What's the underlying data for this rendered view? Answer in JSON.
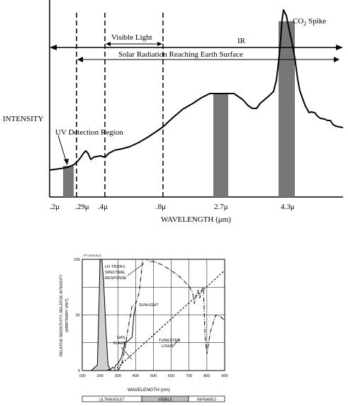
{
  "chart_data": [
    {
      "type": "line",
      "ylabel": "INTENSITY",
      "xlabel": "WAVELENGTH (μm)",
      "x_tick_labels": [
        ".2μ",
        ".29μ",
        ".4μ",
        ".8μ",
        "2.7μ",
        "4.3μ"
      ],
      "band_labels": {
        "visible": "Visible Light",
        "ir": "IR",
        "solar": "Solar Radiation Reaching Earth Surface"
      },
      "annotations": {
        "uv_region": "UV Detection Region",
        "co2_prefix": "CO",
        "co2_sub": "2",
        "co2_suffix": " Spike"
      },
      "shaded_bars_at": [
        ".2μ",
        "2.7μ",
        "4.3μ"
      ],
      "bar_color": "#777777"
    },
    {
      "type": "line",
      "corner_label": "TPT 50000E1A",
      "xlabel": "WAVELENGTH (nm)",
      "ylabel_line1": "RELATIVE SENSITIVITY, RELATIVE INTENSITY",
      "ylabel_line2": "(ARBITRARY UNIT)",
      "x_ticks": [
        "100",
        "200",
        "300",
        "400",
        "500",
        "600",
        "700",
        "800",
        "900"
      ],
      "y_ticks": [
        "0",
        "50",
        "100"
      ],
      "xlim": [
        100,
        900
      ],
      "ylim": [
        0,
        100
      ],
      "annotations": {
        "uvtron_1": "UV TRON's",
        "uvtron_2": "SPECTRAL",
        "uvtron_3": "RESPONSE",
        "sunlight": "SUNLIGHT",
        "gas_1": "GAS",
        "gas_2": "FLAME",
        "tungsten_1": "TUNGSTEN",
        "tungsten_2": "LIGHT"
      },
      "bands": [
        "ULTRAVIOLET",
        "VISIBLE",
        "INFRARED"
      ],
      "series": [
        {
          "name": "UV TRON's SPECTRAL RESPONSE",
          "x": [
            150,
            185,
            195,
            200,
            210,
            220,
            232,
            245,
            260
          ],
          "y": [
            0,
            5,
            65,
            100,
            100,
            80,
            40,
            5,
            0
          ]
        },
        {
          "name": "SUNLIGHT",
          "x": [
            300,
            320,
            340,
            360,
            380,
            400,
            420,
            440,
            460,
            480,
            500,
            550,
            600,
            650,
            700,
            720,
            730,
            740,
            750,
            760,
            770,
            780,
            790,
            800,
            820,
            850,
            880,
            900
          ],
          "y": [
            0,
            5,
            20,
            40,
            58,
            60,
            70,
            100,
            100,
            98,
            98,
            95,
            90,
            84,
            76,
            70,
            60,
            68,
            72,
            65,
            72,
            75,
            30,
            15,
            35,
            50,
            48,
            45
          ]
        },
        {
          "name": "GAS FLAME",
          "x": [
            240,
            250,
            260,
            270,
            280,
            290,
            300,
            320,
            340,
            360,
            380,
            390,
            400
          ],
          "y": [
            0,
            1,
            1,
            3,
            2,
            5,
            6,
            12,
            25,
            27,
            30,
            50,
            58
          ]
        },
        {
          "name": "TUNGSTEN LIGHT",
          "x": [
            280,
            900
          ],
          "y": [
            0,
            90
          ]
        }
      ]
    }
  ]
}
